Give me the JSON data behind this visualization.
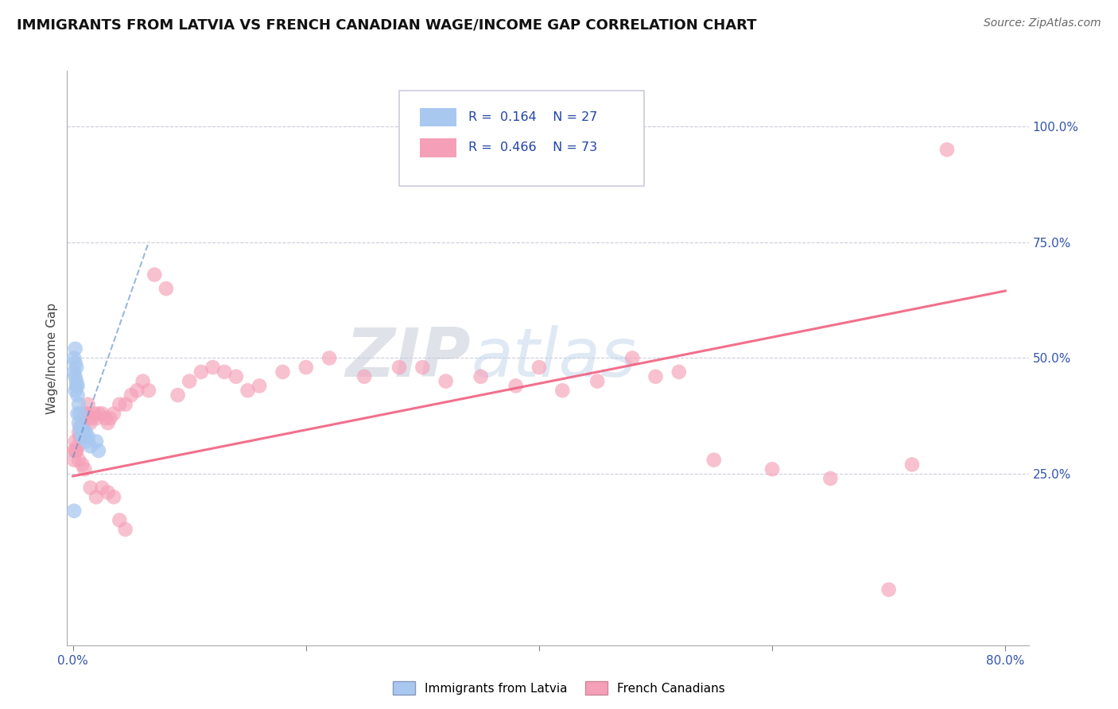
{
  "title": "IMMIGRANTS FROM LATVIA VS FRENCH CANADIAN WAGE/INCOME GAP CORRELATION CHART",
  "source": "Source: ZipAtlas.com",
  "ylabel": "Wage/Income Gap",
  "xlabel_ticks": [
    "0.0%",
    "",
    "",
    "",
    "80.0%"
  ],
  "xlabel_values": [
    0.0,
    0.2,
    0.4,
    0.6,
    0.8
  ],
  "ylabel_ticks": [
    "25.0%",
    "50.0%",
    "75.0%",
    "100.0%"
  ],
  "ylabel_values": [
    0.25,
    0.5,
    0.75,
    1.0
  ],
  "xlim": [
    -0.005,
    0.82
  ],
  "ylim": [
    -0.12,
    1.12
  ],
  "legend1_r": "0.164",
  "legend1_n": "27",
  "legend2_r": "0.466",
  "legend2_n": "73",
  "blue_color": "#a8c8f0",
  "pink_color": "#f5a0b8",
  "blue_line_color": "#5588cc",
  "pink_line_color": "#f06080",
  "blue_scatter_x": [
    0.001,
    0.001,
    0.002,
    0.002,
    0.002,
    0.002,
    0.003,
    0.003,
    0.003,
    0.004,
    0.004,
    0.004,
    0.005,
    0.005,
    0.006,
    0.006,
    0.007,
    0.008,
    0.009,
    0.01,
    0.011,
    0.012,
    0.013,
    0.015,
    0.02,
    0.022,
    0.001
  ],
  "blue_scatter_y": [
    0.47,
    0.5,
    0.52,
    0.49,
    0.46,
    0.43,
    0.48,
    0.45,
    0.44,
    0.42,
    0.44,
    0.38,
    0.4,
    0.36,
    0.38,
    0.35,
    0.34,
    0.33,
    0.34,
    0.33,
    0.34,
    0.32,
    0.33,
    0.31,
    0.32,
    0.3,
    0.17
  ],
  "pink_scatter_x": [
    0.001,
    0.002,
    0.003,
    0.004,
    0.005,
    0.006,
    0.007,
    0.008,
    0.009,
    0.01,
    0.011,
    0.012,
    0.013,
    0.015,
    0.016,
    0.018,
    0.02,
    0.022,
    0.025,
    0.028,
    0.03,
    0.032,
    0.035,
    0.04,
    0.045,
    0.05,
    0.055,
    0.06,
    0.065,
    0.07,
    0.08,
    0.09,
    0.1,
    0.11,
    0.12,
    0.13,
    0.14,
    0.15,
    0.16,
    0.18,
    0.2,
    0.22,
    0.25,
    0.28,
    0.3,
    0.32,
    0.35,
    0.38,
    0.4,
    0.42,
    0.45,
    0.48,
    0.5,
    0.52,
    0.55,
    0.6,
    0.65,
    0.7,
    0.72,
    0.001,
    0.002,
    0.003,
    0.005,
    0.008,
    0.01,
    0.015,
    0.02,
    0.025,
    0.03,
    0.035,
    0.04,
    0.045,
    0.75
  ],
  "pink_scatter_y": [
    0.3,
    0.32,
    0.3,
    0.31,
    0.34,
    0.33,
    0.35,
    0.36,
    0.35,
    0.38,
    0.37,
    0.38,
    0.4,
    0.36,
    0.37,
    0.38,
    0.37,
    0.38,
    0.38,
    0.37,
    0.36,
    0.37,
    0.38,
    0.4,
    0.4,
    0.42,
    0.43,
    0.45,
    0.43,
    0.68,
    0.65,
    0.42,
    0.45,
    0.47,
    0.48,
    0.47,
    0.46,
    0.43,
    0.44,
    0.47,
    0.48,
    0.5,
    0.46,
    0.48,
    0.48,
    0.45,
    0.46,
    0.44,
    0.48,
    0.43,
    0.45,
    0.5,
    0.46,
    0.47,
    0.28,
    0.26,
    0.24,
    0.0,
    0.27,
    0.28,
    0.3,
    0.3,
    0.28,
    0.27,
    0.26,
    0.22,
    0.2,
    0.22,
    0.21,
    0.2,
    0.15,
    0.13,
    0.95
  ],
  "blue_trendline_x": [
    0.0,
    0.065
  ],
  "blue_trendline_y": [
    0.285,
    0.75
  ],
  "pink_trendline_x": [
    0.0,
    0.8
  ],
  "pink_trendline_y": [
    0.245,
    0.645
  ]
}
